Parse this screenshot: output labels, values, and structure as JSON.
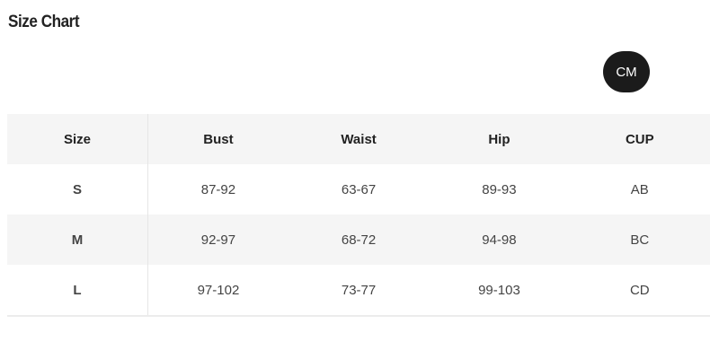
{
  "title": "Size Chart",
  "unit_toggle": "CM",
  "table": {
    "headers": [
      "Size",
      "Bust",
      "Waist",
      "Hip",
      "CUP"
    ],
    "rows": [
      [
        "S",
        "87-92",
        "63-67",
        "89-93",
        "AB"
      ],
      [
        "M",
        "92-97",
        "68-72",
        "94-98",
        "BC"
      ],
      [
        "L",
        "97-102",
        "73-77",
        "99-103",
        "CD"
      ]
    ]
  }
}
